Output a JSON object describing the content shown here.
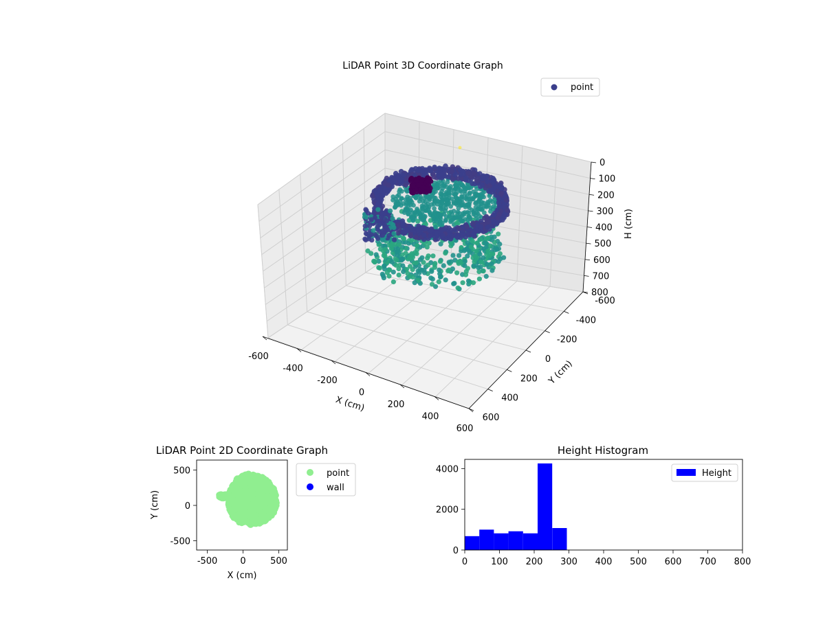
{
  "colors": {
    "viridis_dark": "#440154",
    "viridis_purple": "#3b3f8c",
    "viridis_teal": "#21918c",
    "viridis_green": "#2aa680",
    "viridis_yellow": "#fde725",
    "scatter2d": "#90ee90",
    "wall": "#0000ff",
    "hist": "#0000ff"
  },
  "chart_data": [
    {
      "type": "scatter",
      "title": "LiDAR Point 3D Coordinate Graph",
      "xlabel": "X (cm)",
      "ylabel": "Y (cm)",
      "zlabel": "H (cm)",
      "xlim": [
        -600,
        600
      ],
      "ylim": [
        -600,
        600
      ],
      "zlim": [
        800,
        0
      ],
      "xticks": [
        -600,
        -400,
        -200,
        0,
        200,
        400,
        600
      ],
      "yticks": [
        -600,
        -400,
        -200,
        0,
        200,
        400,
        600
      ],
      "zticks": [
        0,
        100,
        200,
        300,
        400,
        500,
        600,
        700,
        800
      ],
      "legend": [
        {
          "label": "point",
          "color": "#3b3f8c"
        }
      ],
      "legend_position": "top-right",
      "colormap": "viridis",
      "grid": true,
      "description_points": {
        "x_range": [
          -400,
          500
        ],
        "y_range": [
          -400,
          500
        ],
        "h_range": [
          0,
          300
        ]
      }
    },
    {
      "type": "scatter",
      "title": "LiDAR Point 2D Coordinate Graph",
      "xlabel": "X (cm)",
      "ylabel": "Y (cm)",
      "xlim": [
        -650,
        620
      ],
      "ylim": [
        -630,
        640
      ],
      "xticks": [
        -500,
        0,
        500
      ],
      "yticks": [
        -500,
        0,
        500
      ],
      "legend": [
        {
          "label": "point",
          "color": "#90ee90"
        },
        {
          "label": "wall",
          "color": "#0000ff"
        }
      ],
      "legend_position": "outside-right"
    },
    {
      "type": "bar",
      "title": "Height Histogram",
      "xlim": [
        0,
        800
      ],
      "ylim": [
        0,
        4450
      ],
      "xticks": [
        0,
        100,
        200,
        300,
        400,
        500,
        600,
        700,
        800
      ],
      "yticks": [
        0,
        2000,
        4000
      ],
      "bins": [
        {
          "start": 0,
          "end": 42,
          "value": 680
        },
        {
          "start": 42,
          "end": 84,
          "value": 1000
        },
        {
          "start": 84,
          "end": 126,
          "value": 820
        },
        {
          "start": 126,
          "end": 168,
          "value": 920
        },
        {
          "start": 168,
          "end": 210,
          "value": 820
        },
        {
          "start": 210,
          "end": 252,
          "value": 4250
        },
        {
          "start": 252,
          "end": 294,
          "value": 1080
        }
      ],
      "legend": [
        {
          "label": "Height",
          "color": "#0000ff"
        }
      ],
      "legend_position": "top-right"
    }
  ]
}
